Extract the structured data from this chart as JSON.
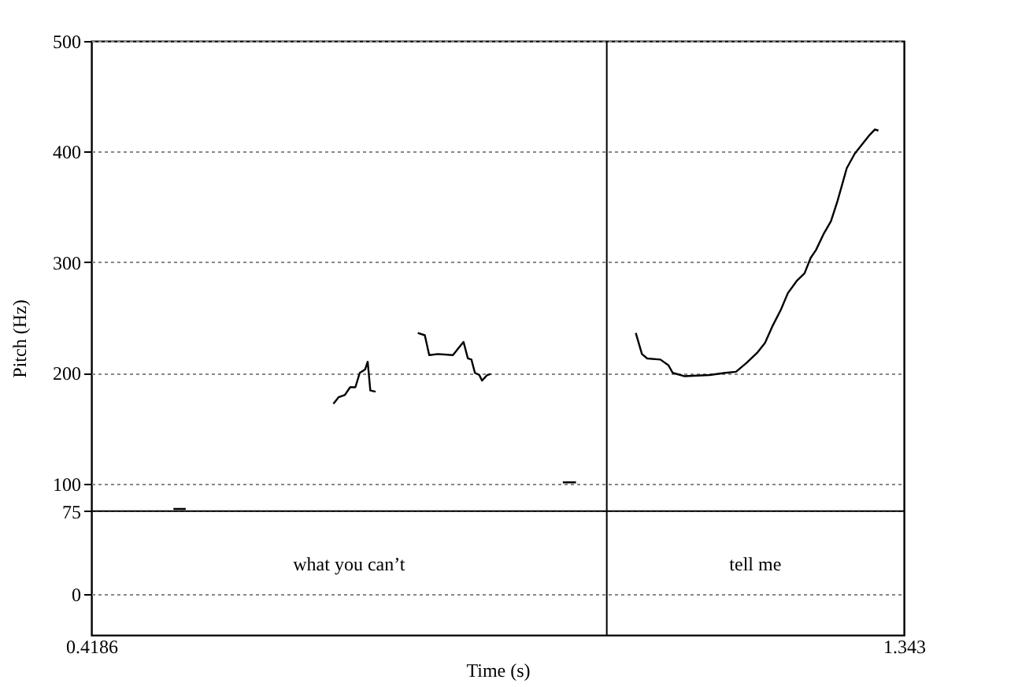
{
  "chart_data": {
    "type": "line",
    "xlabel": "Time (s)",
    "ylabel": "Pitch (Hz)",
    "xlim": [
      0.4186,
      1.343
    ],
    "xticks": [
      0.4186,
      1.343
    ],
    "ylim": [
      -37,
      500
    ],
    "yticks": [
      0,
      75,
      100,
      200,
      300,
      400,
      500
    ],
    "grid": "y",
    "marker": "none",
    "line_style": "solid",
    "series": [
      {
        "color": "#000000",
        "x": [
          0.512,
          0.526,
          null,
          0.694,
          0.7,
          0.707,
          0.713,
          0.719,
          0.724,
          0.73,
          0.733,
          0.736,
          0.742,
          null,
          0.79,
          0.798,
          0.803,
          0.813,
          0.83,
          0.836,
          0.842,
          0.847,
          0.851,
          0.855,
          0.86,
          0.863,
          0.869,
          0.873,
          null,
          0.955,
          0.97,
          null,
          1.038,
          1.045,
          1.051,
          1.066,
          1.075,
          1.08,
          1.093,
          1.122,
          1.14,
          1.152,
          1.164,
          1.176,
          1.185,
          1.194,
          1.203,
          1.211,
          1.221,
          1.23,
          1.237,
          1.243,
          1.252,
          1.26,
          1.267,
          1.272,
          1.278,
          1.287,
          1.296,
          1.304,
          1.31,
          1.314
        ],
        "values": [
          77,
          77,
          null,
          172,
          178,
          180,
          187,
          187,
          200,
          203,
          210,
          184,
          183,
          null,
          236,
          234,
          216,
          217,
          216,
          222,
          228,
          213,
          212,
          200,
          198,
          193,
          198,
          199,
          null,
          101,
          101,
          null,
          236,
          217,
          213,
          212,
          207,
          200,
          197,
          198,
          200,
          201,
          209,
          218,
          227,
          243,
          257,
          272,
          283,
          290,
          304,
          311,
          326,
          337,
          354,
          368,
          385,
          398,
          407,
          415,
          420,
          419
        ]
      }
    ],
    "ref_lines": [
      {
        "axis": "y",
        "value": 75,
        "color": "#000000",
        "line_style": "solid"
      },
      {
        "axis": "x",
        "value": 1.005,
        "color": "#000000",
        "line_style": "solid"
      }
    ],
    "annotations": [
      "what you can’t",
      "tell me"
    ]
  }
}
